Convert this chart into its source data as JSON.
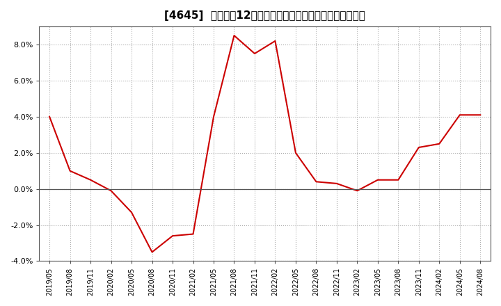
{
  "title": "[4645]  売上高の12か月移動合計の対前年同期増減率の推移",
  "line_color": "#cc0000",
  "background_color": "#ffffff",
  "grid_color": "#aaaaaa",
  "x_labels": [
    "2019/05",
    "2019/08",
    "2019/11",
    "2020/02",
    "2020/05",
    "2020/08",
    "2020/11",
    "2021/02",
    "2021/05",
    "2021/08",
    "2021/11",
    "2022/02",
    "2022/05",
    "2022/08",
    "2022/11",
    "2023/02",
    "2023/05",
    "2023/08",
    "2023/11",
    "2024/02",
    "2024/05",
    "2024/08"
  ],
  "y_values": [
    4.0,
    1.0,
    0.5,
    -0.1,
    -1.3,
    -3.5,
    -2.6,
    -2.5,
    4.0,
    8.5,
    7.5,
    8.2,
    2.0,
    0.4,
    0.3,
    -0.1,
    0.5,
    0.5,
    2.3,
    2.5,
    4.1,
    4.1
  ],
  "ylim": [
    -4.0,
    9.0
  ],
  "yticks": [
    -4.0,
    -2.0,
    0.0,
    2.0,
    4.0,
    6.0,
    8.0
  ],
  "title_fontsize": 11,
  "zero_line_color": "#555555",
  "spine_color": "#555555"
}
